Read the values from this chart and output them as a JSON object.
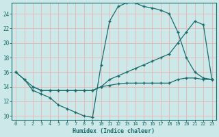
{
  "xlabel": "Humidex (Indice chaleur)",
  "bg_color": "#cce8e8",
  "line_color": "#1a6b6b",
  "grid_color": "#e8b4b4",
  "xlim": [
    -0.5,
    23.5
  ],
  "ylim": [
    9.5,
    25.5
  ],
  "xticks": [
    0,
    1,
    2,
    3,
    4,
    5,
    6,
    7,
    8,
    9,
    10,
    11,
    12,
    13,
    14,
    15,
    16,
    17,
    18,
    19,
    20,
    21,
    22,
    23
  ],
  "yticks": [
    10,
    12,
    14,
    16,
    18,
    20,
    22,
    24
  ],
  "line1_x": [
    0,
    1,
    2,
    3,
    4,
    5,
    6,
    7,
    8,
    9,
    10,
    11,
    12,
    13,
    14,
    15,
    16,
    17,
    18,
    19,
    20,
    21,
    22,
    23
  ],
  "line1_y": [
    16,
    15,
    13.5,
    13,
    12.5,
    11.5,
    11,
    10.5,
    10,
    9.8,
    17,
    23,
    25,
    25.5,
    25.5,
    25,
    24.8,
    24.5,
    24,
    21.5,
    18,
    16,
    15.2,
    15
  ],
  "line2_x": [
    0,
    1,
    2,
    3,
    4,
    5,
    6,
    7,
    8,
    9,
    10,
    11,
    12,
    13,
    14,
    15,
    16,
    17,
    18,
    19,
    20,
    21,
    22,
    23
  ],
  "line2_y": [
    16,
    15,
    14,
    13.5,
    13.5,
    13.5,
    13.5,
    13.5,
    13.5,
    13.5,
    14,
    15,
    15.5,
    16,
    16.5,
    17,
    17.5,
    18,
    18.5,
    20,
    21.5,
    23,
    22.5,
    15
  ],
  "line3_x": [
    2,
    3,
    4,
    5,
    6,
    7,
    8,
    9,
    10,
    11,
    12,
    13,
    14,
    15,
    16,
    17,
    18,
    19,
    20,
    21,
    22,
    23
  ],
  "line3_y": [
    14,
    13.5,
    13.5,
    13.5,
    13.5,
    13.5,
    13.5,
    13.5,
    14,
    14.2,
    14.4,
    14.5,
    14.5,
    14.5,
    14.5,
    14.5,
    14.5,
    15,
    15.2,
    15.2,
    15,
    15
  ]
}
